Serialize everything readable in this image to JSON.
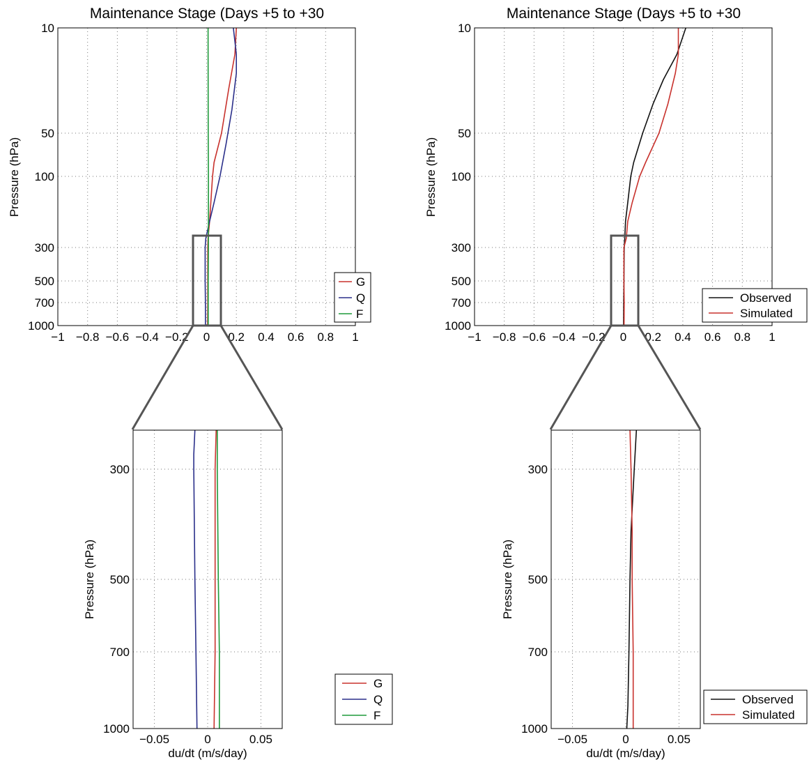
{
  "figure": {
    "panels": {
      "top_left": {
        "title": "Maintenance Stage (Days +5 to +30",
        "ylabel": "Pressure (hPa)",
        "xlabel": "",
        "xticks": [
          "−1",
          "−0.8",
          "−0.6",
          "−0.4",
          "−0.2",
          "0",
          "0.2",
          "0.4",
          "0.6",
          "0.8",
          "1"
        ],
        "yticks": [
          "10",
          "50",
          "100",
          "300",
          "500",
          "700",
          "1000"
        ],
        "legend": [
          "G",
          "Q",
          "F"
        ]
      },
      "top_right": {
        "title": "Maintenance Stage (Days +5 to +30",
        "ylabel": "Pressure (hPa)",
        "xlabel": "",
        "xticks": [
          "−1",
          "−0.8",
          "−0.6",
          "−0.4",
          "−0.2",
          "0",
          "0.2",
          "0.4",
          "0.6",
          "0.8",
          "1"
        ],
        "yticks": [
          "10",
          "50",
          "100",
          "300",
          "500",
          "700",
          "1000"
        ],
        "legend": [
          "Observed",
          "Simulated"
        ]
      },
      "bottom_left": {
        "title": "",
        "ylabel": "Pressure (hPa)",
        "xlabel": "du/dt (m/s/day)",
        "xticks": [
          "−0.05",
          "0",
          "0.05"
        ],
        "yticks": [
          "300",
          "500",
          "700",
          "1000"
        ],
        "legend": [
          "G",
          "Q",
          "F"
        ]
      },
      "bottom_right": {
        "title": "",
        "ylabel": "Pressure (hPa)",
        "xlabel": "du/dt (m/s/day)",
        "xticks": [
          "−0.05",
          "0",
          "0.05"
        ],
        "yticks": [
          "300",
          "500",
          "700",
          "1000"
        ],
        "legend": [
          "Observed",
          "Simulated"
        ]
      }
    }
  },
  "chart_data": [
    {
      "id": "top_left",
      "type": "line",
      "title": "Maintenance Stage (Days +5 to +30",
      "xlabel": "",
      "ylabel": "Pressure (hPa)",
      "xlim": [
        -1,
        1
      ],
      "ylim": [
        1000,
        10
      ],
      "y_scale": "log-like (tick positions as printed)",
      "grid": true,
      "legend_position": "lower-right",
      "zoom_box": {
        "x": [
          -0.08,
          0.1
        ],
        "y": [
          1000,
          250
        ]
      },
      "series": [
        {
          "name": "G",
          "color": "#c8322d",
          "points": [
            [
              0.2,
              10
            ],
            [
              0.19,
              15
            ],
            [
              0.15,
              25
            ],
            [
              0.1,
              50
            ],
            [
              0.05,
              80
            ],
            [
              0.04,
              100
            ],
            [
              0.02,
              200
            ],
            [
              0.01,
              260
            ],
            [
              0.008,
              300
            ],
            [
              0.008,
              500
            ],
            [
              0.008,
              700
            ],
            [
              0.007,
              1000
            ]
          ]
        },
        {
          "name": "Q",
          "color": "#2a2f8a",
          "points": [
            [
              0.18,
              10
            ],
            [
              0.2,
              15
            ],
            [
              0.2,
              20
            ],
            [
              0.17,
              35
            ],
            [
              0.13,
              60
            ],
            [
              0.09,
              100
            ],
            [
              0.05,
              150
            ],
            [
              0.02,
              200
            ],
            [
              -0.005,
              260
            ],
            [
              -0.01,
              300
            ],
            [
              -0.01,
              500
            ],
            [
              -0.008,
              700
            ],
            [
              -0.008,
              1000
            ]
          ]
        },
        {
          "name": "F",
          "color": "#1f9a3a",
          "points": [
            [
              0.01,
              10
            ],
            [
              0.011,
              50
            ],
            [
              0.012,
              100
            ],
            [
              0.012,
              300
            ],
            [
              0.011,
              500
            ],
            [
              0.011,
              700
            ],
            [
              0.011,
              1000
            ]
          ]
        }
      ]
    },
    {
      "id": "top_right",
      "type": "line",
      "title": "Maintenance Stage (Days +5 to +30",
      "xlabel": "",
      "ylabel": "Pressure (hPa)",
      "xlim": [
        -1,
        1
      ],
      "ylim": [
        1000,
        10
      ],
      "y_scale": "log-like (tick positions as printed)",
      "grid": true,
      "legend_position": "lower-right",
      "zoom_box": {
        "x": [
          -0.08,
          0.1
        ],
        "y": [
          1000,
          250
        ]
      },
      "series": [
        {
          "name": "Observed",
          "color": "#111111",
          "points": [
            [
              0.42,
              10
            ],
            [
              0.36,
              15
            ],
            [
              0.27,
              22
            ],
            [
              0.2,
              32
            ],
            [
              0.13,
              50
            ],
            [
              0.07,
              80
            ],
            [
              0.05,
              100
            ],
            [
              0.03,
              150
            ],
            [
              0.015,
              200
            ],
            [
              0.01,
              260
            ],
            [
              0.006,
              300
            ],
            [
              0.004,
              500
            ],
            [
              0.003,
              700
            ],
            [
              0.002,
              1000
            ]
          ]
        },
        {
          "name": "Simulated",
          "color": "#c8322d",
          "points": [
            [
              0.37,
              10
            ],
            [
              0.37,
              15
            ],
            [
              0.35,
              20
            ],
            [
              0.3,
              32
            ],
            [
              0.24,
              50
            ],
            [
              0.15,
              80
            ],
            [
              0.11,
              100
            ],
            [
              0.06,
              150
            ],
            [
              0.03,
              200
            ],
            [
              0.02,
              260
            ],
            [
              0.004,
              300
            ],
            [
              0.004,
              500
            ],
            [
              0.006,
              700
            ],
            [
              0.005,
              1000
            ]
          ]
        }
      ]
    },
    {
      "id": "bottom_left",
      "type": "line",
      "title": "",
      "xlabel": "du/dt (m/s/day)",
      "ylabel": "Pressure (hPa)",
      "xlim": [
        -0.07,
        0.07
      ],
      "ylim": [
        1000,
        250
      ],
      "grid": true,
      "legend_position": "lower-right (outside)",
      "series": [
        {
          "name": "G",
          "color": "#c8322d",
          "points": [
            [
              0.008,
              250
            ],
            [
              0.007,
              300
            ],
            [
              0.007,
              500
            ],
            [
              0.007,
              700
            ],
            [
              0.006,
              1000
            ]
          ]
        },
        {
          "name": "Q",
          "color": "#2a2f8a",
          "points": [
            [
              -0.012,
              250
            ],
            [
              -0.013,
              280
            ],
            [
              -0.013,
              300
            ],
            [
              -0.012,
              500
            ],
            [
              -0.011,
              700
            ],
            [
              -0.01,
              1000
            ]
          ]
        },
        {
          "name": "F",
          "color": "#1f9a3a",
          "points": [
            [
              0.009,
              250
            ],
            [
              0.009,
              300
            ],
            [
              0.01,
              500
            ],
            [
              0.011,
              700
            ],
            [
              0.011,
              1000
            ]
          ]
        }
      ]
    },
    {
      "id": "bottom_right",
      "type": "line",
      "title": "",
      "xlabel": "du/dt (m/s/day)",
      "ylabel": "Pressure (hPa)",
      "xlim": [
        -0.07,
        0.07
      ],
      "ylim": [
        1000,
        250
      ],
      "grid": true,
      "legend_position": "lower-right (outside)",
      "series": [
        {
          "name": "Observed",
          "color": "#111111",
          "points": [
            [
              0.01,
              250
            ],
            [
              0.008,
              300
            ],
            [
              0.005,
              400
            ],
            [
              0.004,
              500
            ],
            [
              0.003,
              700
            ],
            [
              0.002,
              900
            ],
            [
              0.001,
              1000
            ]
          ]
        },
        {
          "name": "Simulated",
          "color": "#c8322d",
          "points": [
            [
              0.004,
              250
            ],
            [
              0.005,
              300
            ],
            [
              0.006,
              400
            ],
            [
              0.006,
              500
            ],
            [
              0.007,
              700
            ],
            [
              0.007,
              1000
            ]
          ]
        }
      ]
    }
  ]
}
